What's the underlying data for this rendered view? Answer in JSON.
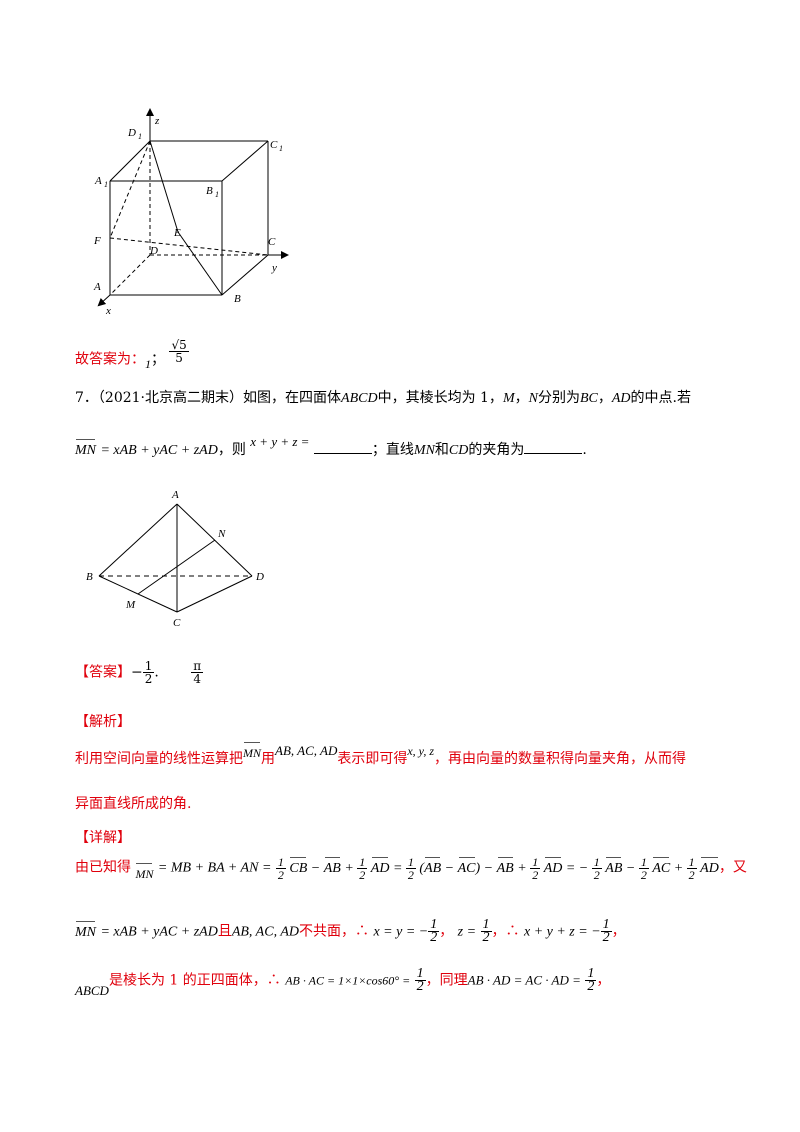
{
  "fig1_labels": {
    "z": "z",
    "D1": "D",
    "D1sub": "1",
    "C1": "C",
    "C1sub": "1",
    "A1": "A",
    "A1sub": "1",
    "B1": "B",
    "B1sub": "1",
    "F": "F",
    "E": "E",
    "D": "D",
    "C": "C",
    "y": "y",
    "A": "A",
    "B": "B",
    "x": "x"
  },
  "answer_prev": {
    "prefix": "故答案为：",
    "part1": "1",
    "sep": "；",
    "frac_num": "√5",
    "frac_den": "5"
  },
  "q7": {
    "number": "7．",
    "source": "（2021·北京高二期末）如图，在四面体",
    "name": "ABCD",
    "stem_a": "中，其棱长均为 1，",
    "M": "M",
    "comma": "，",
    "N": "N",
    "stem_b": "分别为",
    "BC": "BC",
    "sep1": "，",
    "AD": "AD",
    "stem_c": "的中点.若",
    "eq_lhs": "MN",
    "eq_mid": "= xAB + yAC + zAD",
    "then": "，则",
    "xyz": "x + y + z =",
    "semi": "；直线",
    "MN": "MN",
    "and": "和",
    "CD": "CD",
    "angle": "的夹角为",
    "end": "."
  },
  "fig2_labels": {
    "A": "A",
    "N": "N",
    "B": "B",
    "D": "D",
    "M": "M",
    "C": "C"
  },
  "answer": {
    "tag": "【答案】",
    "val1_sign": "−",
    "val1_num": "1",
    "val1_den": "2",
    "dot": ".",
    "val2_num": "π",
    "val2_den": "4"
  },
  "analysis": {
    "tag": "【解析】",
    "l1a": "利用空间向量的线性运算把",
    "l1_MN": "MN",
    "l1b": "用",
    "l1_vecs": "AB, AC, AD",
    "l1c": "表示即可得",
    "l1_xyz": "x, y, z",
    "l1d": "，再由向量的数量积得向量夹角，从而得",
    "l2": "异面直线所成的角."
  },
  "detail": {
    "tag": "【详解】",
    "d1a": "由已知得",
    "d1_MN": "MN",
    "d1_eq": "= MB + BA + AN =",
    "d1_end": "，又",
    "d2_lhs": "MN",
    "d2_eq": "= xAB + yAC + zAD",
    "d2_and": "且",
    "d2_vecs": "AB, AC, AD",
    "d2_b": "不共面，",
    "therefore": "∴",
    "d2_x": "x = y = −",
    "d2_z": "z =",
    "d2_sum": "x + y + z = −",
    "d2_end": "，",
    "d3_name": "ABCD",
    "d3_a": "是棱长为 1 的正四面体，",
    "d3_dot": "AB · AC = 1×1×cos60° =",
    "d3_same": "同理",
    "d3_dot2": "AB · AD = AC · AD =",
    "d3_end": "，"
  }
}
